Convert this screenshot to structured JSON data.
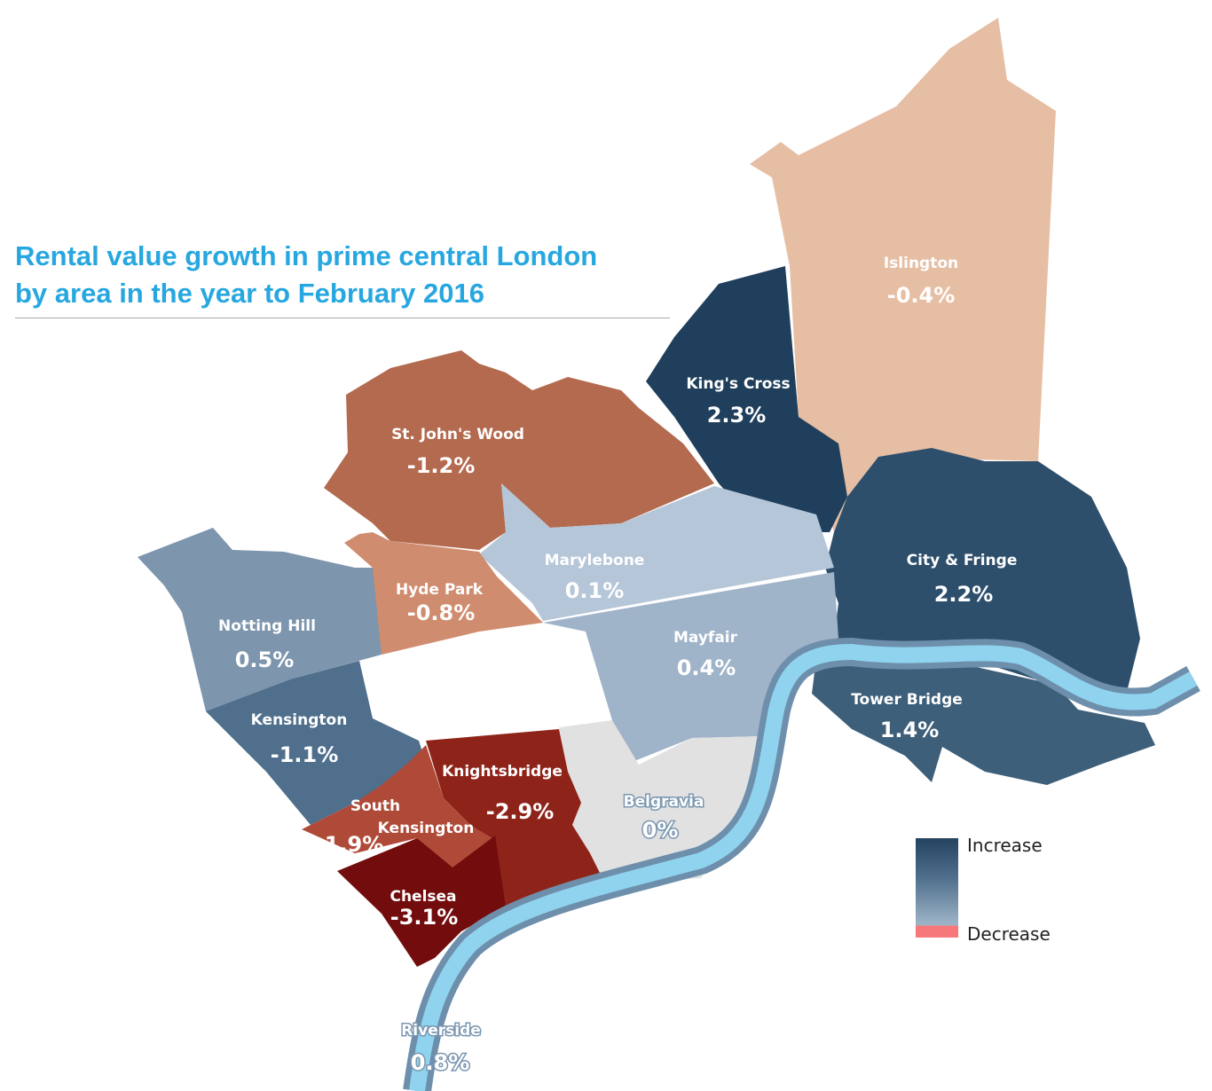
{
  "title": {
    "line1": "Rental value growth in prime central London",
    "line2": "by area in the year to February 2016"
  },
  "legend": {
    "increase": "Increase",
    "decrease": "Decrease",
    "increase_color": "#23435f",
    "decrease_color": "#f7787a"
  },
  "areas": {
    "islington": {
      "name": "Islington",
      "value": "-0.4%",
      "color": "#e6bea3"
    },
    "kings_cross": {
      "name": "King's Cross",
      "value": "2.3%",
      "color": "#1f3f5c"
    },
    "city_fringe": {
      "name": "City & Fringe",
      "value": "2.2%",
      "color": "#2d4f6c"
    },
    "tower_bridge": {
      "name": "Tower Bridge",
      "value": "1.4%",
      "color": "#3e5f7a"
    },
    "st_johns_wood": {
      "name": "St. John's Wood",
      "value": "-1.2%",
      "color": "#b36a4e"
    },
    "marylebone": {
      "name": "Marylebone",
      "value": "0.1%",
      "color": "#b4c6d8"
    },
    "hyde_park": {
      "name": "Hyde Park",
      "value": "-0.8%",
      "color": "#d08c6e"
    },
    "notting_hill": {
      "name": "Notting Hill",
      "value": "0.5%",
      "color": "#7d95ad"
    },
    "mayfair": {
      "name": "Mayfair",
      "value": "0.4%",
      "color": "#9fb3c9"
    },
    "kensington": {
      "name": "Kensington",
      "value": "-1.1%",
      "color": "#4f6f8c"
    },
    "knightsbridge": {
      "name": "Knightsbridge",
      "value": "-2.9%",
      "color": "#8e2419"
    },
    "south_kensington": {
      "name_line1": "South",
      "name_line2": "Kensington",
      "value": "-1.9%",
      "color": "#b04a38"
    },
    "chelsea": {
      "name": "Chelsea",
      "value": "-3.1%",
      "color": "#730d0d"
    },
    "belgravia": {
      "name": "Belgravia",
      "value": "0%",
      "color": "#e1e1e1"
    },
    "riverside": {
      "name": "Riverside",
      "value": "0.8%"
    }
  },
  "river_color": "#8fd3ee"
}
